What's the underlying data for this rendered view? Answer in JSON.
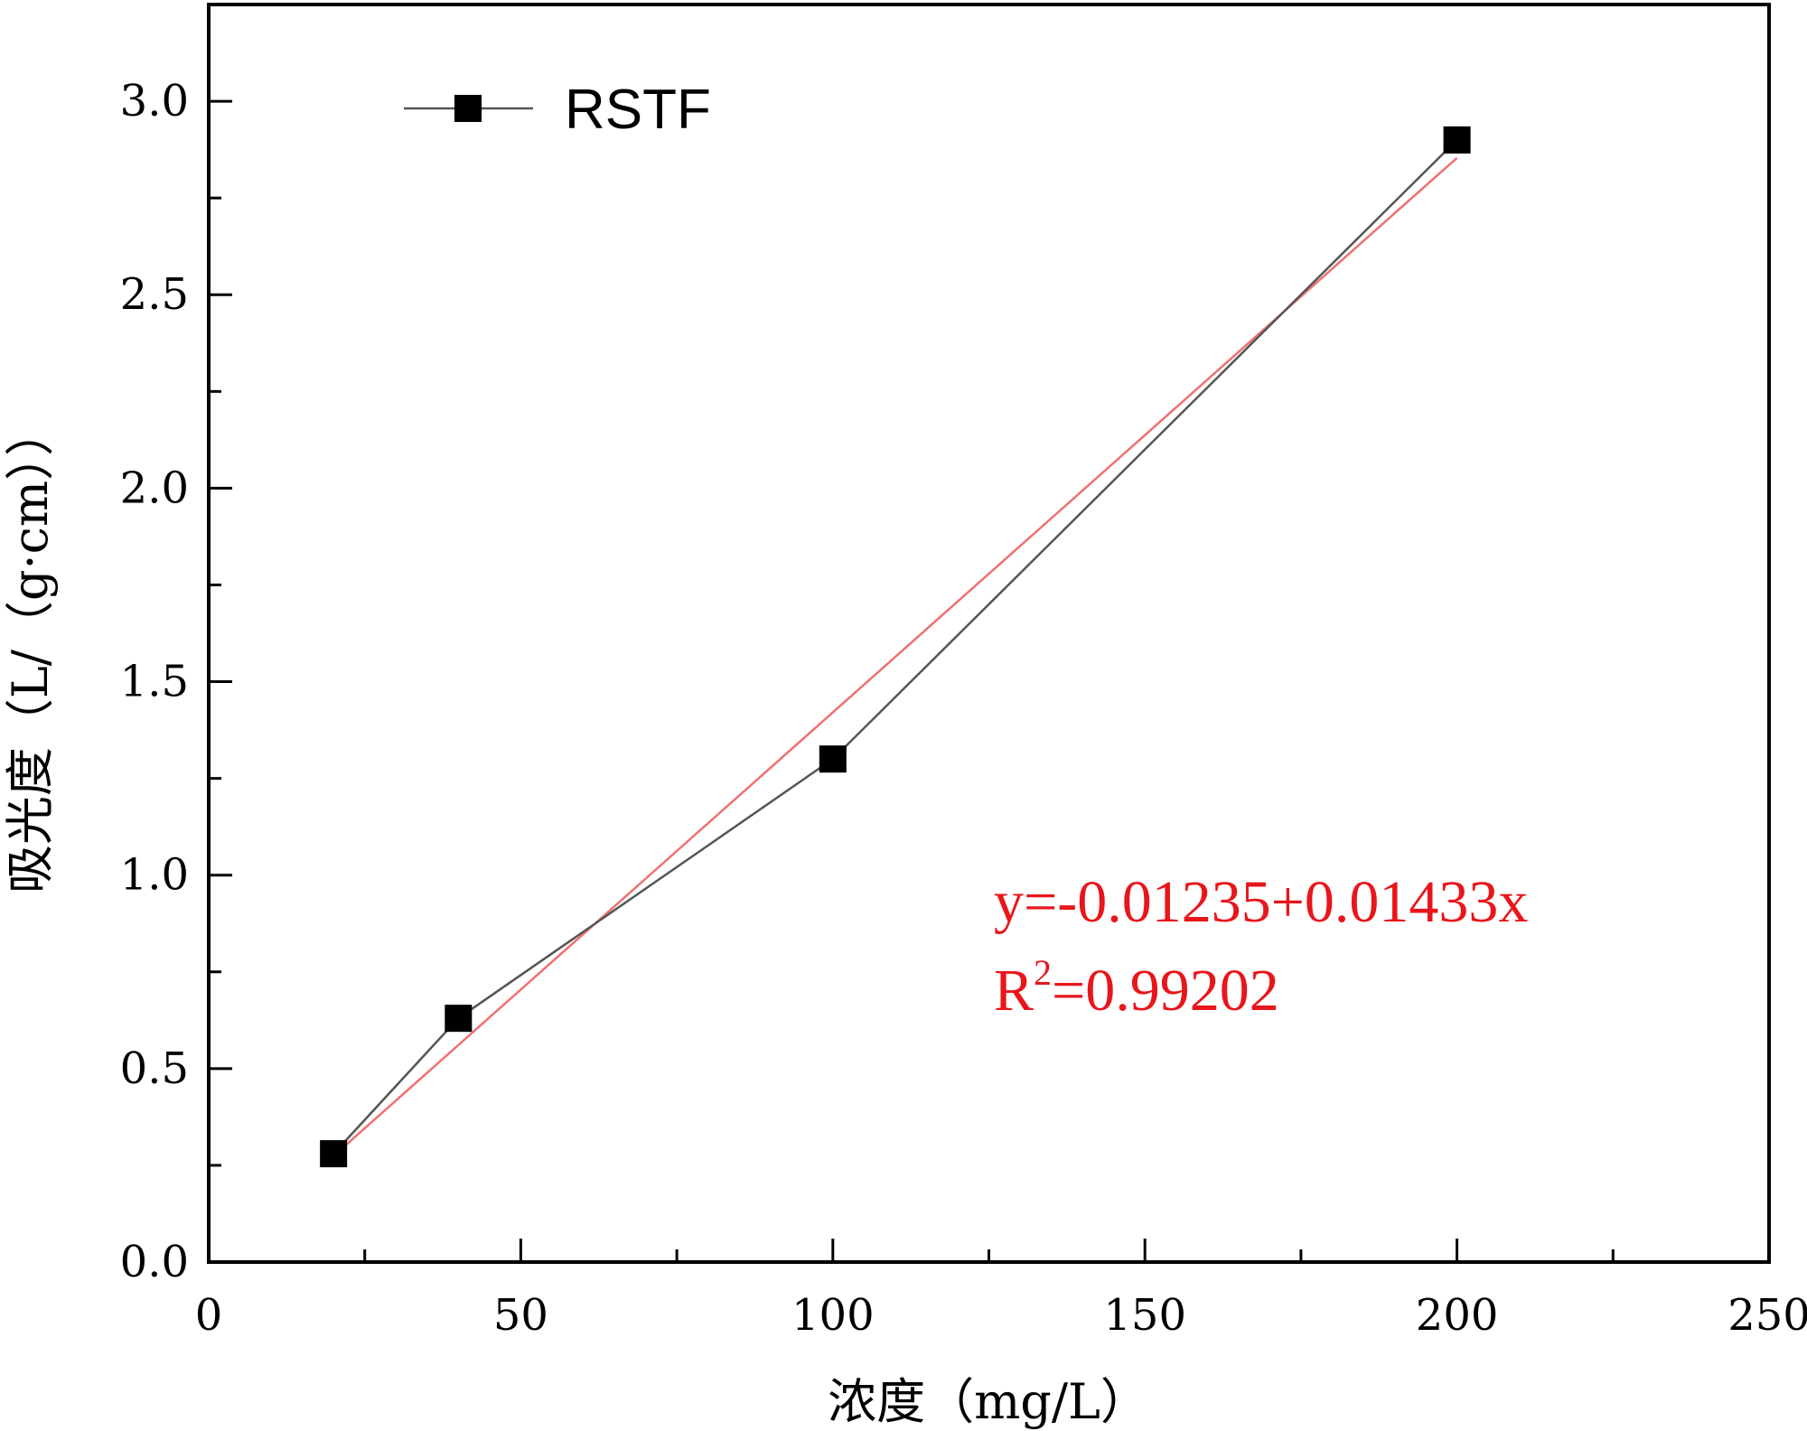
{
  "chart_data": {
    "type": "line",
    "title": "",
    "xlabel": "浓度（mg/L）",
    "ylabel": "吸光度（L/（g·cm））",
    "xlim": [
      0,
      250
    ],
    "ylim": [
      0,
      3.25
    ],
    "xticks": [
      0,
      50,
      100,
      150,
      200,
      250
    ],
    "yticks": [
      0.0,
      0.5,
      1.0,
      1.5,
      2.0,
      2.5,
      3.0
    ],
    "x_tick_labels": [
      "0",
      "50",
      "100",
      "150",
      "200",
      "250"
    ],
    "y_tick_labels": [
      "0.0",
      "0.5",
      "1.0",
      "1.5",
      "2.0",
      "2.5",
      "3.0"
    ],
    "grid": false,
    "legend_position": "top-left",
    "series": [
      {
        "name": "RSTF",
        "x": [
          20,
          40,
          100,
          200
        ],
        "y": [
          0.28,
          0.63,
          1.3,
          2.9
        ],
        "color": "#555555",
        "marker": "square"
      }
    ],
    "fit": {
      "intercept": -0.01235,
      "slope": 0.01433,
      "x_range": [
        20,
        200
      ],
      "color": "#f07070"
    },
    "annotations": {
      "equation": "y=-0.01235+0.01433x",
      "r2_label": "R",
      "r2_sup": "2",
      "r2_value": "=0.99202",
      "color": "#e8161b"
    }
  }
}
